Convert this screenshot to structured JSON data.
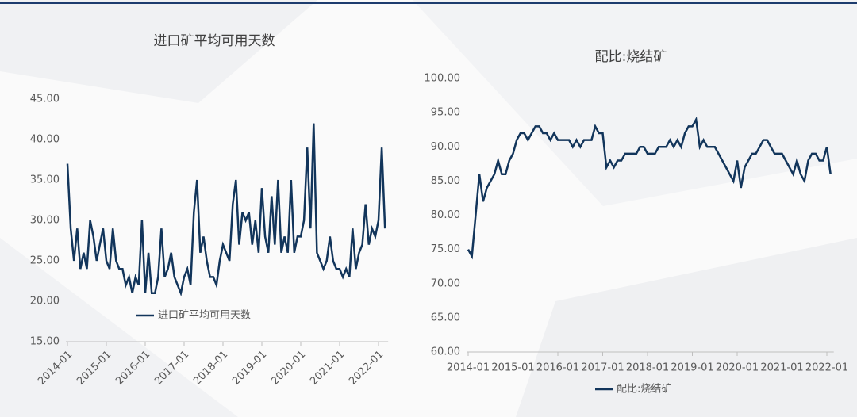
{
  "chart_data": [
    {
      "type": "line",
      "title": "进口矿平均可用天数",
      "x": [
        "2014-01",
        "2014-02",
        "2014-03",
        "2014-04",
        "2014-05",
        "2014-06",
        "2014-07",
        "2014-08",
        "2014-09",
        "2014-10",
        "2014-11",
        "2014-12",
        "2015-01",
        "2015-02",
        "2015-03",
        "2015-04",
        "2015-05",
        "2015-06",
        "2015-07",
        "2015-08",
        "2015-09",
        "2015-10",
        "2015-11",
        "2015-12",
        "2016-01",
        "2016-02",
        "2016-03",
        "2016-04",
        "2016-05",
        "2016-06",
        "2016-07",
        "2016-08",
        "2016-09",
        "2016-10",
        "2016-11",
        "2016-12",
        "2017-01",
        "2017-02",
        "2017-03",
        "2017-04",
        "2017-05",
        "2017-06",
        "2017-07",
        "2017-08",
        "2017-09",
        "2017-10",
        "2017-11",
        "2017-12",
        "2018-01",
        "2018-02",
        "2018-03",
        "2018-04",
        "2018-05",
        "2018-06",
        "2018-07",
        "2018-08",
        "2018-09",
        "2018-10",
        "2018-11",
        "2018-12",
        "2019-01",
        "2019-02",
        "2019-03",
        "2019-04",
        "2019-05",
        "2019-06",
        "2019-07",
        "2019-08",
        "2019-09",
        "2019-10",
        "2019-11",
        "2019-12",
        "2020-01",
        "2020-02",
        "2020-03",
        "2020-04",
        "2020-05",
        "2020-06",
        "2020-07",
        "2020-08",
        "2020-09",
        "2020-10",
        "2020-11",
        "2020-12",
        "2021-01",
        "2021-02",
        "2021-03",
        "2021-04",
        "2021-05",
        "2021-06",
        "2021-07",
        "2021-08",
        "2021-09",
        "2021-10",
        "2021-11",
        "2021-12",
        "2022-01",
        "2022-02",
        "2022-03"
      ],
      "series": [
        {
          "name": "进口矿平均可用天数",
          "color": "#12355b",
          "values": [
            37,
            29,
            25,
            29,
            24,
            26,
            24,
            30,
            28,
            25,
            27,
            29,
            25,
            24,
            29,
            25,
            24,
            24,
            22,
            23,
            21,
            23,
            22,
            30,
            21,
            26,
            21,
            21,
            23,
            29,
            23,
            24,
            26,
            23,
            22,
            21,
            23,
            24,
            22,
            31,
            35,
            26,
            28,
            25,
            23,
            23,
            22,
            25,
            27,
            26,
            25,
            32,
            35,
            27,
            31,
            30,
            31,
            27,
            30,
            26,
            34,
            28,
            26,
            33,
            27,
            35,
            26,
            28,
            26,
            35,
            26,
            28,
            28,
            30,
            39,
            29,
            42,
            26,
            25,
            24,
            25,
            28,
            25,
            24,
            24,
            23,
            24,
            23,
            29,
            24,
            26,
            27,
            32,
            27,
            29,
            28,
            30,
            39,
            29
          ]
        }
      ],
      "ylim": [
        15,
        45
      ],
      "yticks": [
        {
          "value": 15,
          "label": "15.00"
        },
        {
          "value": 20,
          "label": "20.00"
        },
        {
          "value": 25,
          "label": "25.00"
        },
        {
          "value": 30,
          "label": "30.00"
        },
        {
          "value": 35,
          "label": "35.00"
        },
        {
          "value": 40,
          "label": "40.00"
        },
        {
          "value": 45,
          "label": "45.00"
        }
      ],
      "xticks": [
        "2014-01",
        "2015-01",
        "2016-01",
        "2017-01",
        "2018-01",
        "2019-01",
        "2020-01",
        "2021-01",
        "2022-01"
      ],
      "legend": "bottom"
    },
    {
      "type": "line",
      "title": "配比:烧结矿",
      "x": [
        "2014-01",
        "2014-02",
        "2014-03",
        "2014-04",
        "2014-05",
        "2014-06",
        "2014-07",
        "2014-08",
        "2014-09",
        "2014-10",
        "2014-11",
        "2014-12",
        "2015-01",
        "2015-02",
        "2015-03",
        "2015-04",
        "2015-05",
        "2015-06",
        "2015-07",
        "2015-08",
        "2015-09",
        "2015-10",
        "2015-11",
        "2015-12",
        "2016-01",
        "2016-02",
        "2016-03",
        "2016-04",
        "2016-05",
        "2016-06",
        "2016-07",
        "2016-08",
        "2016-09",
        "2016-10",
        "2016-11",
        "2016-12",
        "2017-01",
        "2017-02",
        "2017-03",
        "2017-04",
        "2017-05",
        "2017-06",
        "2017-07",
        "2017-08",
        "2017-09",
        "2017-10",
        "2017-11",
        "2017-12",
        "2018-01",
        "2018-02",
        "2018-03",
        "2018-04",
        "2018-05",
        "2018-06",
        "2018-07",
        "2018-08",
        "2018-09",
        "2018-10",
        "2018-11",
        "2018-12",
        "2019-01",
        "2019-02",
        "2019-03",
        "2019-04",
        "2019-05",
        "2019-06",
        "2019-07",
        "2019-08",
        "2019-09",
        "2019-10",
        "2019-11",
        "2019-12",
        "2020-01",
        "2020-02",
        "2020-03",
        "2020-04",
        "2020-05",
        "2020-06",
        "2020-07",
        "2020-08",
        "2020-09",
        "2020-10",
        "2020-11",
        "2020-12",
        "2021-01",
        "2021-02",
        "2021-03",
        "2021-04",
        "2021-05",
        "2021-06",
        "2021-07",
        "2021-08",
        "2021-09",
        "2021-10",
        "2021-11",
        "2021-12",
        "2022-01",
        "2022-02"
      ],
      "series": [
        {
          "name": "配比:烧结矿",
          "color": "#12355b",
          "values": [
            75,
            74,
            80,
            86,
            82,
            84,
            85,
            86,
            88,
            86,
            86,
            88,
            89,
            91,
            92,
            92,
            91,
            92,
            93,
            93,
            92,
            92,
            91,
            92,
            91,
            91,
            91,
            91,
            90,
            91,
            90,
            91,
            91,
            91,
            93,
            92,
            92,
            87,
            88,
            87,
            88,
            88,
            89,
            89,
            89,
            89,
            90,
            90,
            89,
            89,
            89,
            90,
            90,
            90,
            91,
            90,
            91,
            90,
            92,
            93,
            93,
            94,
            90,
            91,
            90,
            90,
            90,
            89,
            88,
            87,
            86,
            85,
            88,
            84,
            87,
            88,
            89,
            89,
            90,
            91,
            91,
            90,
            89,
            89,
            89,
            88,
            87,
            86,
            88,
            86,
            85,
            88,
            89,
            89,
            88,
            88,
            90,
            86
          ]
        }
      ],
      "ylim": [
        60,
        100
      ],
      "yticks": [
        {
          "value": 60,
          "label": "60.00"
        },
        {
          "value": 65,
          "label": "65.00"
        },
        {
          "value": 70,
          "label": "70.00"
        },
        {
          "value": 75,
          "label": "75.00"
        },
        {
          "value": 80,
          "label": "80.00"
        },
        {
          "value": 85,
          "label": "85.00"
        },
        {
          "value": 90,
          "label": "90.00"
        },
        {
          "value": 95,
          "label": "95.00"
        },
        {
          "value": 100,
          "label": "100.00"
        }
      ],
      "xticks": [
        "2014-01",
        "2015-01",
        "2016-01",
        "2017-01",
        "2018-01",
        "2019-01",
        "2020-01",
        "2021-01",
        "2022-01"
      ],
      "legend": "bottom"
    }
  ]
}
